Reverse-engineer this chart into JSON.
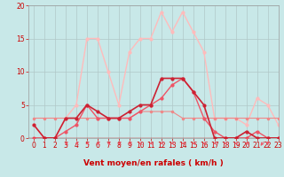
{
  "x": [
    0,
    1,
    2,
    3,
    4,
    5,
    6,
    7,
    8,
    9,
    10,
    11,
    12,
    13,
    14,
    15,
    16,
    17,
    18,
    19,
    20,
    21,
    22,
    23
  ],
  "line_red_dark": [
    0,
    0,
    0,
    0,
    0,
    0,
    0,
    0,
    0,
    0,
    0,
    0,
    0,
    0,
    0,
    0,
    0,
    0,
    0,
    0,
    0,
    0,
    0,
    0
  ],
  "line_red_mid": [
    2,
    0,
    0,
    3,
    3,
    5,
    4,
    3,
    3,
    4,
    5,
    5,
    9,
    9,
    9,
    7,
    5,
    0,
    0,
    0,
    1,
    0,
    0,
    0
  ],
  "line_red_light2": [
    0,
    0,
    0,
    1,
    2,
    5,
    3,
    3,
    3,
    3,
    4,
    5,
    6,
    8,
    9,
    7,
    3,
    1,
    0,
    0,
    0,
    1,
    0,
    0
  ],
  "line_pink": [
    2,
    0,
    0,
    3,
    5,
    15,
    15,
    10,
    5,
    13,
    15,
    15,
    19,
    16,
    19,
    16,
    13,
    3,
    3,
    3,
    2,
    6,
    5,
    2
  ],
  "line_flat": [
    3,
    3,
    3,
    3,
    3,
    3,
    3,
    3,
    3,
    3,
    4,
    4,
    4,
    4,
    3,
    3,
    3,
    3,
    3,
    3,
    3,
    3,
    3,
    3
  ],
  "background_color": "#c8e8e8",
  "grid_color": "#b0c8c8",
  "color_dark_red": "#cc0000",
  "color_mid_red": "#cc2233",
  "color_light_red": "#ee5566",
  "color_pink": "#ffbbbb",
  "color_flat": "#ee8888",
  "xlabel": "Vent moyen/en rafales ( km/h )",
  "ylim": [
    0,
    20
  ],
  "xlim": [
    -0.5,
    23
  ],
  "yticks": [
    0,
    5,
    10,
    15,
    20
  ],
  "xticks": [
    0,
    1,
    2,
    3,
    4,
    5,
    6,
    7,
    8,
    9,
    10,
    11,
    12,
    13,
    14,
    15,
    16,
    17,
    18,
    19,
    20,
    21,
    22,
    23
  ]
}
